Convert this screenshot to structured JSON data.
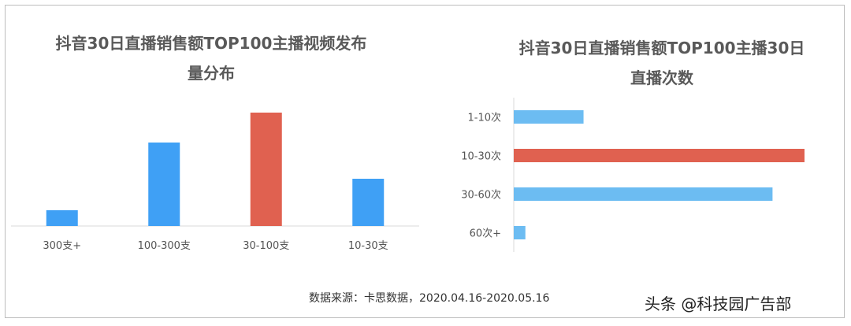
{
  "chart_data": [
    {
      "type": "bar",
      "orientation": "vertical",
      "title_lines": [
        "抖音30日直播销售额TOP100主播视频发布",
        "量分布"
      ],
      "categories": [
        "300支+",
        "100-300支",
        "30-100支",
        "10-30支"
      ],
      "values": [
        10,
        53,
        72,
        30
      ],
      "highlight_index": 2,
      "bar_color": "#3fa0f5",
      "highlight_color": "#e06150",
      "ylim": [
        0,
        80
      ],
      "grid": false
    },
    {
      "type": "bar",
      "orientation": "horizontal",
      "title_lines": [
        "抖音30日直播销售额TOP100主播30日",
        "直播次数"
      ],
      "categories": [
        "1-10次",
        "10-30次",
        "30-60次",
        "60次+"
      ],
      "values": [
        24,
        100,
        89,
        4
      ],
      "highlight_index": 1,
      "bar_color": "#6cbcf2",
      "highlight_color": "#e06150",
      "xlim": [
        0,
        100
      ],
      "grid": false
    }
  ],
  "footer": {
    "source": "数据来源：卡思数据，2020.04.16-2020.05.16",
    "watermark": "头条 @科技园广告部"
  }
}
